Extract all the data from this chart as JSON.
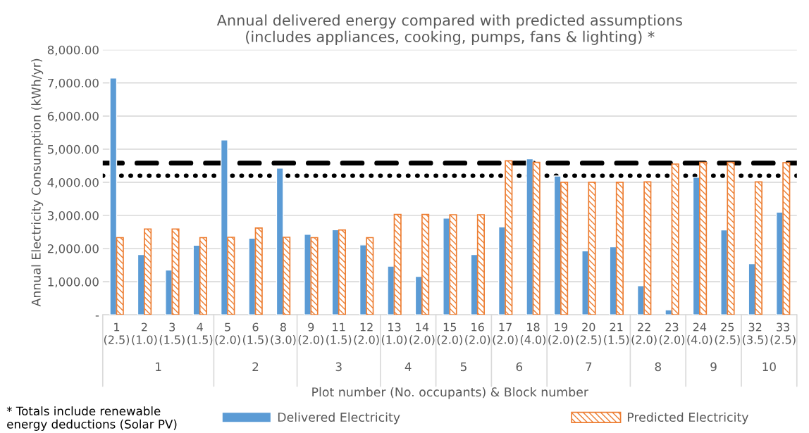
{
  "chart_data": {
    "type": "bar",
    "title": "Annual delivered energy compared with predicted assumptions\n(includes appliances, cooking, pumps, fans & lighting) *",
    "xlabel": "Plot number (No. occupants) & Block number",
    "ylabel": "Annual Electricity Consumption (kWh/yr)",
    "categories": [
      "1\n(2.5)",
      "2\n(1.0)",
      "3\n(1.5)",
      "4\n(1.5)",
      "5\n(2.0)",
      "6\n(1.5)",
      "8\n(3.0)",
      "9\n(2.0)",
      "11\n(1.5)",
      "12\n(2.0)",
      "13\n(1.0)",
      "14\n(2.0)",
      "15\n(2.0)",
      "16\n(2.0)",
      "17\n(2.0)",
      "18\n(4.0)",
      "19\n(2.0)",
      "20\n(2.5)",
      "21\n(1.5)",
      "22\n(2.0)",
      "23\n(2.0)",
      "24\n(4.0)",
      "25\n(2.5)",
      "32\n(3.5)",
      "33\n(2.5)"
    ],
    "series": [
      {
        "name": "Delivered Electricity",
        "color": "#5b9bd5",
        "values": [
          7150,
          1820,
          1350,
          2100,
          5280,
          2310,
          4430,
          2430,
          2570,
          2110,
          1470,
          1160,
          2920,
          1820,
          2650,
          4710,
          4190,
          1930,
          2050,
          880,
          150,
          4150,
          2560,
          1540,
          3100
        ]
      },
      {
        "name": "Predicted Electricity",
        "color": "#ed7d31",
        "values": [
          2330,
          2590,
          2590,
          2330,
          2340,
          2620,
          2340,
          2330,
          2560,
          2330,
          3030,
          3030,
          3020,
          3020,
          4650,
          4600,
          4000,
          4000,
          4000,
          4010,
          4550,
          4600,
          4600,
          4010,
          4590
        ]
      }
    ],
    "ylim": [
      0,
      8000
    ],
    "yticks": [
      {
        "value": 0,
        "label": "-"
      },
      {
        "value": 1000,
        "label": "1,000.00"
      },
      {
        "value": 2000,
        "label": "2,000.00"
      },
      {
        "value": 3000,
        "label": "3,000.00"
      },
      {
        "value": 4000,
        "label": "4,000.00"
      },
      {
        "value": 5000,
        "label": "5,000.00"
      },
      {
        "value": 6000,
        "label": "6,000.00"
      },
      {
        "value": 7000,
        "label": "7,000.00"
      },
      {
        "value": 8000,
        "label": "8,000.00"
      }
    ],
    "ref_lines": [
      {
        "axis": "y",
        "value": 4580,
        "color": "#000000",
        "line_style": "dashed"
      },
      {
        "axis": "y",
        "value": 4200,
        "color": "#000000",
        "line_style": "dotted"
      }
    ],
    "annotations": [
      "1",
      "2",
      "3",
      "4",
      "5",
      "6",
      "7",
      "8",
      "9",
      "10",
      "* Totals include renewable\nenergy deductions (Solar PV)"
    ],
    "grid": "y",
    "legend": "bottom"
  }
}
